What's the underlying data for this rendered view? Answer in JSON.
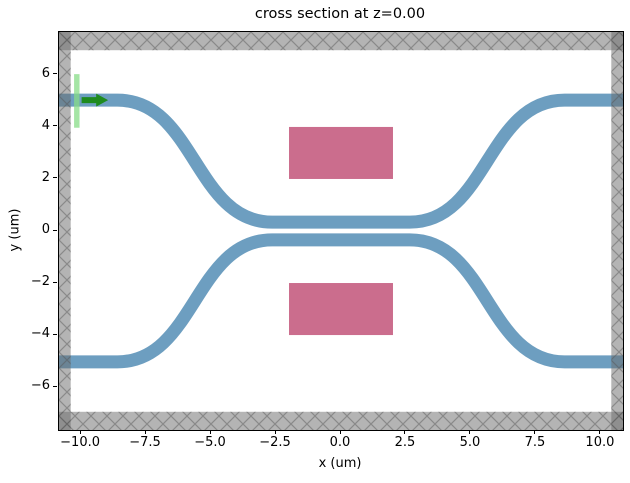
{
  "title": "cross section at z=0.00",
  "axes": {
    "xlabel": "x (um)",
    "ylabel": "y (um)",
    "xlim": [
      -10.85,
      10.85
    ],
    "ylim": [
      -7.65,
      7.65
    ],
    "xticks": [
      -10.0,
      -7.5,
      -5.0,
      -2.5,
      0.0,
      2.5,
      5.0,
      7.5,
      10.0
    ],
    "xtick_labels": [
      "−10.0",
      "−7.5",
      "−5.0",
      "−2.5",
      "0.0",
      "2.5",
      "5.0",
      "7.5",
      "10.0"
    ],
    "yticks": [
      6,
      4,
      2,
      0,
      -2,
      -4,
      -6
    ],
    "ytick_labels": [
      "6",
      "4",
      "2",
      "0",
      "−2",
      "−4",
      "−6"
    ]
  },
  "chart_data": {
    "type": "cross-section",
    "title": "cross section at z=0.00",
    "units": "um",
    "waveguides": {
      "count": 2,
      "width_um": 0.5,
      "x_edge": 10.85,
      "bend_x_outer": 8.6,
      "bend_mid_x": 5.625,
      "bend_x_inner": 2.65,
      "y_outer": 5.03,
      "y_inner": 0.34,
      "color": "#6d9ec0"
    },
    "slabs": {
      "color": "#cb6d8d",
      "rects": [
        {
          "x": [
            -2.0,
            2.0
          ],
          "y": [
            2.0,
            4.0
          ]
        },
        {
          "x": [
            -2.0,
            2.0
          ],
          "y": [
            -4.0,
            -2.0
          ]
        }
      ]
    },
    "pml_layers": {
      "fill": "rgba(105,105,105,0.5)",
      "hatch_color": "rgba(85,85,85,0.45)",
      "rects": [
        {
          "side": "top",
          "x": [
            -10.85,
            10.85
          ],
          "y": [
            6.95,
            7.65
          ]
        },
        {
          "side": "bottom",
          "x": [
            -10.85,
            10.85
          ],
          "y": [
            -7.65,
            -6.95
          ]
        },
        {
          "side": "left",
          "x": [
            -10.85,
            -10.4
          ],
          "y": [
            -7.65,
            7.65
          ]
        },
        {
          "side": "right",
          "x": [
            10.4,
            10.85
          ],
          "y": [
            -7.65,
            7.65
          ]
        }
      ]
    },
    "mode_source": {
      "plane": {
        "x": [
          -10.27,
          -10.06
        ],
        "y": [
          3.97,
          6.03
        ],
        "color": "rgba(135,220,135,0.75)"
      },
      "arrow": {
        "x_tail": -9.98,
        "x_head": -9.42,
        "x_tip": -8.96,
        "y": 5.03,
        "tail_half_width": 0.115,
        "head_half_width": 0.25,
        "color": "#1f8b1f"
      }
    }
  },
  "colors": {
    "background": "#ffffff",
    "spine": "#000000",
    "waveguide": "#6d9ec0",
    "slab": "#cb6d8d",
    "pml_gray": "rgba(105,105,105,0.5)",
    "source_green": "#1f8b1f"
  }
}
